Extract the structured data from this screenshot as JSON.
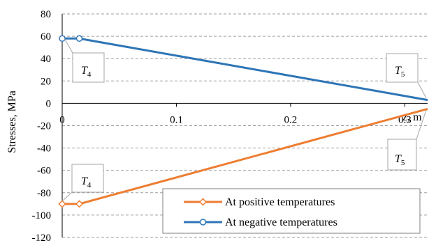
{
  "chart_data": {
    "type": "line",
    "ylabel": "Stresses, MPa",
    "xlabel": "z, m",
    "xlim": [
      0,
      0.32
    ],
    "ylim": [
      -120,
      80
    ],
    "x_ticks": [
      0,
      0.1,
      0.2,
      0.3
    ],
    "x_tick_labels": [
      "0",
      "0.1",
      "0.2",
      "0.3"
    ],
    "y_ticks": [
      -120,
      -100,
      -80,
      -60,
      -40,
      -20,
      0,
      20,
      40,
      60,
      80
    ],
    "y_tick_labels": [
      "-120",
      "-100",
      "-80",
      "-60",
      "-40",
      "-20",
      "0",
      "20",
      "40",
      "60",
      "80"
    ],
    "grid": "horizontal-dashed",
    "legend_position": "bottom-right",
    "series": [
      {
        "name": "At positive temperatures",
        "color": "#ED7D31",
        "marker": "diamond",
        "x": [
          0,
          0.015,
          0.32
        ],
        "y": [
          -90,
          -90,
          -5
        ]
      },
      {
        "name": "At negative temperatures",
        "color": "#2E75B6",
        "marker": "circle",
        "x": [
          0,
          0.015,
          0.32
        ],
        "y": [
          58,
          58,
          3
        ]
      }
    ],
    "annotations": [
      {
        "name": "T4-upper",
        "letter": "T",
        "sub": "4"
      },
      {
        "name": "T5-upper",
        "letter": "T",
        "sub": "5"
      },
      {
        "name": "T4-lower",
        "letter": "T",
        "sub": "4"
      },
      {
        "name": "T5-lower",
        "letter": "T",
        "sub": "5"
      }
    ]
  }
}
